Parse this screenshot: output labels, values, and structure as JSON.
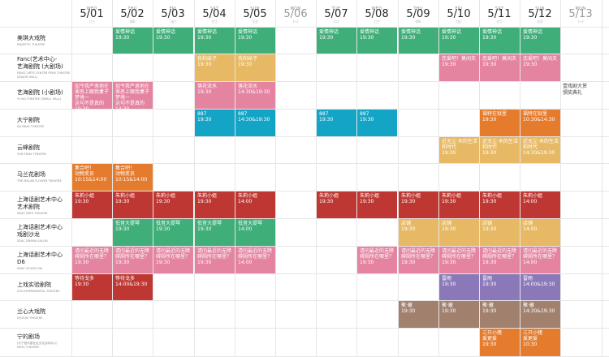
{
  "colors": {
    "green": "#3fae79",
    "yellow": "#e7b964",
    "pink": "#e484a1",
    "cyan": "#13a4c6",
    "orange": "#e57b2d",
    "red": "#be3733",
    "purple": "#8b78b8",
    "brown": "#a2806e"
  },
  "days": [
    {
      "dow": "WED",
      "date": "5/01",
      "cn": "(三)"
    },
    {
      "dow": "THU",
      "date": "5/02",
      "cn": "(四)"
    },
    {
      "dow": "FRI",
      "date": "5/03",
      "cn": "(五)"
    },
    {
      "dow": "SAT",
      "date": "5/04",
      "cn": "(六)"
    },
    {
      "dow": "SUN",
      "date": "5/05",
      "cn": "(日)"
    },
    {
      "dow": "MON",
      "date": "5/06",
      "cn": "(一)"
    },
    {
      "dow": "TUE",
      "date": "5/07",
      "cn": "(二)"
    },
    {
      "dow": "WED",
      "date": "5/08",
      "cn": "(三)"
    },
    {
      "dow": "THU",
      "date": "5/09",
      "cn": "(四)"
    },
    {
      "dow": "FRI",
      "date": "5/10",
      "cn": "(五)"
    },
    {
      "dow": "SAT",
      "date": "5/11",
      "cn": "(六)"
    },
    {
      "dow": "SUN",
      "date": "5/12",
      "cn": "(日)"
    },
    {
      "dow": "MON",
      "date": "5/13",
      "cn": "(一)"
    }
  ],
  "venues": [
    {
      "name": "美琪大戏院",
      "en": "MAJESTIC THEATRE"
    },
    {
      "name": "Fanc(艺术中心-\n艺海剧院 (大剧场)",
      "en": "FANCL ARTS CENTER PEAR THEATRE\n(MAJOR HALL)"
    },
    {
      "name": "艺海剧院 (小剧场)",
      "en": "YI HAI THEATRE (SMALL HALL)"
    },
    {
      "name": "大宁剧院",
      "en": "DA NING THEATRE"
    },
    {
      "name": "云峰剧院",
      "en": "YUN FENG THEATRE"
    },
    {
      "name": "马兰花剧场",
      "en": "THE MALAN FLOWER THEATRE"
    },
    {
      "name": "上海话剧艺术中心\n艺术剧院",
      "en": "SDAC ARTS THEATRE"
    },
    {
      "name": "上海话剧艺术中心\n戏剧沙龙",
      "en": "SDAC DRAMA SALON"
    },
    {
      "name": "上海话剧艺术中心\nD6",
      "en": "SDAC STUDIO D6"
    },
    {
      "name": "上戏实验剧院",
      "en": "STA EXPERIMENTAL THEATRE"
    },
    {
      "name": "兰心大戏院",
      "en": "LYCEUM THEATRE"
    },
    {
      "name": "宁的剧场",
      "en": "(大宁音乐剧社区文化活动中心)\nMING THEATRE"
    }
  ],
  "events": [
    {
      "row": 0,
      "day": 1,
      "span": 1,
      "color": "green",
      "title": "爱情神话",
      "time": "19:30"
    },
    {
      "row": 0,
      "day": 2,
      "span": 1,
      "color": "green",
      "title": "爱情神话",
      "time": "19:30"
    },
    {
      "row": 0,
      "day": 3,
      "span": 1,
      "color": "green",
      "title": "爱情神话",
      "time": "19:30"
    },
    {
      "row": 0,
      "day": 4,
      "span": 1,
      "color": "green",
      "title": "爱情神话",
      "time": "19:30"
    },
    {
      "row": 0,
      "day": 6,
      "span": 1,
      "color": "green",
      "title": "爱情神话",
      "time": "19:30"
    },
    {
      "row": 0,
      "day": 7,
      "span": 1,
      "color": "green",
      "title": "爱情神话",
      "time": "19:30"
    },
    {
      "row": 0,
      "day": 8,
      "span": 1,
      "color": "green",
      "title": "爱情神话",
      "time": "19:30"
    },
    {
      "row": 0,
      "day": 9,
      "span": 1,
      "color": "green",
      "title": "爱情神话",
      "time": "19:30"
    },
    {
      "row": 0,
      "day": 10,
      "span": 1,
      "color": "green",
      "title": "爱情神话",
      "time": "19:30"
    },
    {
      "row": 0,
      "day": 11,
      "span": 1,
      "color": "green",
      "title": "爱情神话",
      "time": "19:30"
    },
    {
      "row": 1,
      "day": 3,
      "span": 1,
      "color": "yellow",
      "title": "我和妹子",
      "time": "19:30"
    },
    {
      "row": 1,
      "day": 4,
      "span": 1,
      "color": "yellow",
      "title": "我和妹子",
      "time": "19:30"
    },
    {
      "row": 1,
      "day": 9,
      "span": 1,
      "color": "pink",
      "title": "恋爱吧！莫闲夫",
      "time": "19:30"
    },
    {
      "row": 1,
      "day": 10,
      "span": 1,
      "color": "pink",
      "title": "恋爱吧！莫闲夫",
      "time": "19:30"
    },
    {
      "row": 1,
      "day": 11,
      "span": 1,
      "color": "pink",
      "title": "恋爱吧！莫闲夫",
      "time": "19:30"
    },
    {
      "row": 2,
      "day": 0,
      "span": 1,
      "color": "pink",
      "title": "如今我严肃地在\n罪恶上跟我妻子\n梦境一\n这句不是真的",
      "time": "19:30"
    },
    {
      "row": 2,
      "day": 1,
      "span": 1,
      "color": "pink",
      "title": "如今我严肃地在\n罪恶上跟我妻子\n梦境一\n这句不是真的",
      "time": "14:30"
    },
    {
      "row": 2,
      "day": 3,
      "span": 1,
      "color": "pink",
      "title": "落花流水",
      "time": "19:30"
    },
    {
      "row": 2,
      "day": 4,
      "span": 1,
      "color": "pink",
      "title": "落花流水",
      "time": "14:30&19:30"
    },
    {
      "row": 3,
      "day": 3,
      "span": 1,
      "color": "cyan",
      "title": "887",
      "time": "19:30"
    },
    {
      "row": 3,
      "day": 4,
      "span": 1,
      "color": "cyan",
      "title": "887",
      "time": "14:30&19:30"
    },
    {
      "row": 3,
      "day": 6,
      "span": 1,
      "color": "cyan",
      "title": "887",
      "time": "19:30"
    },
    {
      "row": 3,
      "day": 7,
      "span": 1,
      "color": "cyan",
      "title": "887",
      "time": "19:30"
    },
    {
      "row": 3,
      "day": 10,
      "span": 1,
      "color": "orange",
      "title": "福特在狱里",
      "time": "19:30"
    },
    {
      "row": 3,
      "day": 11,
      "span": 1,
      "color": "orange",
      "title": "福特在狱里",
      "time": "10:30&14:30"
    },
    {
      "row": 4,
      "day": 9,
      "span": 1,
      "color": "yellow",
      "title": "近无尘·木的生活\n和时代",
      "time": "19:30"
    },
    {
      "row": 4,
      "day": 10,
      "span": 1,
      "color": "yellow",
      "title": "近无尘·木的生活\n和时代",
      "time": "19:30"
    },
    {
      "row": 4,
      "day": 11,
      "span": 1,
      "color": "yellow",
      "title": "近无尘·木的生活\n和时代",
      "time": "14:30&19:30"
    },
    {
      "row": 5,
      "day": 0,
      "span": 1,
      "color": "orange",
      "title": "集合吧！\n动物变员",
      "time": "10:15&14:00"
    },
    {
      "row": 5,
      "day": 1,
      "span": 1,
      "color": "orange",
      "title": "集合吧！\n动物变员",
      "time": "10:15&14:00"
    },
    {
      "row": 6,
      "day": 0,
      "span": 1,
      "color": "red",
      "title": "朱莉小姐",
      "time": "19:30"
    },
    {
      "row": 6,
      "day": 1,
      "span": 1,
      "color": "red",
      "title": "朱莉小姐",
      "time": "19:30"
    },
    {
      "row": 6,
      "day": 2,
      "span": 1,
      "color": "red",
      "title": "朱莉小姐",
      "time": "19:30"
    },
    {
      "row": 6,
      "day": 3,
      "span": 1,
      "color": "red",
      "title": "朱莉小姐",
      "time": "19:30"
    },
    {
      "row": 6,
      "day": 4,
      "span": 1,
      "color": "red",
      "title": "朱莉小姐",
      "time": "14:00"
    },
    {
      "row": 6,
      "day": 6,
      "span": 1,
      "color": "red",
      "title": "朱莉小姐",
      "time": "19:30"
    },
    {
      "row": 6,
      "day": 7,
      "span": 1,
      "color": "red",
      "title": "朱莉小姐",
      "time": "19:30"
    },
    {
      "row": 6,
      "day": 8,
      "span": 1,
      "color": "red",
      "title": "朱莉小姐",
      "time": "19:30"
    },
    {
      "row": 6,
      "day": 9,
      "span": 1,
      "color": "red",
      "title": "朱莉小姐",
      "time": "19:30"
    },
    {
      "row": 6,
      "day": 10,
      "span": 1,
      "color": "red",
      "title": "朱莉小姐",
      "time": "19:30"
    },
    {
      "row": 6,
      "day": 11,
      "span": 1,
      "color": "red",
      "title": "朱莉小姐",
      "time": "14:00"
    },
    {
      "row": 7,
      "day": 1,
      "span": 1,
      "color": "green",
      "title": "低音大提琴",
      "time": "19:30"
    },
    {
      "row": 7,
      "day": 2,
      "span": 1,
      "color": "green",
      "title": "低音大提琴",
      "time": "19:30"
    },
    {
      "row": 7,
      "day": 3,
      "span": 1,
      "color": "green",
      "title": "低音大提琴",
      "time": "19:30"
    },
    {
      "row": 7,
      "day": 4,
      "span": 1,
      "color": "green",
      "title": "低音大提琴",
      "time": "14:00"
    },
    {
      "row": 7,
      "day": 8,
      "span": 1,
      "color": "yellow",
      "title": "店铺",
      "time": "19:30"
    },
    {
      "row": 7,
      "day": 9,
      "span": 1,
      "color": "yellow",
      "title": "店铺",
      "time": "19:30"
    },
    {
      "row": 7,
      "day": 10,
      "span": 1,
      "color": "yellow",
      "title": "店铺",
      "time": "19:30"
    },
    {
      "row": 7,
      "day": 11,
      "span": 1,
      "color": "yellow",
      "title": "店铺",
      "time": "14:00"
    },
    {
      "row": 8,
      "day": 0,
      "span": 1,
      "color": "pink",
      "title": "请问最近的无障\n碍厕所在哪里？",
      "time": "19:30"
    },
    {
      "row": 8,
      "day": 1,
      "span": 1,
      "color": "pink",
      "title": "请问最近的无障\n碍厕所在哪里？",
      "time": "19:30"
    },
    {
      "row": 8,
      "day": 2,
      "span": 1,
      "color": "pink",
      "title": "请问最近的无障\n碍厕所在哪里？",
      "time": "19:30"
    },
    {
      "row": 8,
      "day": 3,
      "span": 1,
      "color": "pink",
      "title": "请问最近的无障\n碍厕所在哪里？",
      "time": "19:30"
    },
    {
      "row": 8,
      "day": 4,
      "span": 1,
      "color": "pink",
      "title": "请问最近的无障\n碍厕所在哪里？",
      "time": "14:00"
    },
    {
      "row": 8,
      "day": 7,
      "span": 1,
      "color": "pink",
      "title": "请问最近的无障\n碍厕所在哪里？",
      "time": "19:30"
    },
    {
      "row": 8,
      "day": 8,
      "span": 1,
      "color": "pink",
      "title": "请问最近的无障\n碍厕所在哪里？",
      "time": "19:30"
    },
    {
      "row": 8,
      "day": 9,
      "span": 1,
      "color": "pink",
      "title": "请问最近的无障\n碍厕所在哪里？",
      "time": "19:30"
    },
    {
      "row": 8,
      "day": 10,
      "span": 1,
      "color": "pink",
      "title": "请问最近的无障\n碍厕所在哪里？",
      "time": "19:30"
    },
    {
      "row": 8,
      "day": 11,
      "span": 1,
      "color": "pink",
      "title": "请问最近的无障\n碍厕所在哪里？",
      "time": "14:00"
    },
    {
      "row": 9,
      "day": 0,
      "span": 1,
      "color": "red",
      "title": "等待戈多",
      "time": "19:30"
    },
    {
      "row": 9,
      "day": 1,
      "span": 1,
      "color": "red",
      "title": "等待戈多",
      "time": "14:00&19:30"
    },
    {
      "row": 9,
      "day": 9,
      "span": 1,
      "color": "purple",
      "title": "雷雨",
      "time": "19:30"
    },
    {
      "row": 9,
      "day": 10,
      "span": 1,
      "color": "purple",
      "title": "雷雨",
      "time": "19:30"
    },
    {
      "row": 9,
      "day": 11,
      "span": 1,
      "color": "purple",
      "title": "雷雨",
      "time": "14:00&19:30"
    },
    {
      "row": 10,
      "day": 8,
      "span": 1,
      "color": "brown",
      "title": "聚·藏",
      "time": "19:30"
    },
    {
      "row": 10,
      "day": 9,
      "span": 1,
      "color": "brown",
      "title": "聚·藏",
      "time": "19:30"
    },
    {
      "row": 10,
      "day": 10,
      "span": 1,
      "color": "brown",
      "title": "聚·藏",
      "time": "19:30"
    },
    {
      "row": 10,
      "day": 11,
      "span": 1,
      "color": "brown",
      "title": "聚·藏",
      "time": "14:30&19:30"
    },
    {
      "row": 11,
      "day": 10,
      "span": 1,
      "color": "orange",
      "title": "三只小猪\n爱更爱",
      "time": "19:30"
    },
    {
      "row": 11,
      "day": 11,
      "span": 1,
      "color": "orange",
      "title": "三只小猪\n爱更爱",
      "time": "10:30"
    }
  ],
  "notes": [
    {
      "row": 2,
      "day": 12,
      "text": "壹戏剧大赏\n颁奖典礼"
    }
  ]
}
